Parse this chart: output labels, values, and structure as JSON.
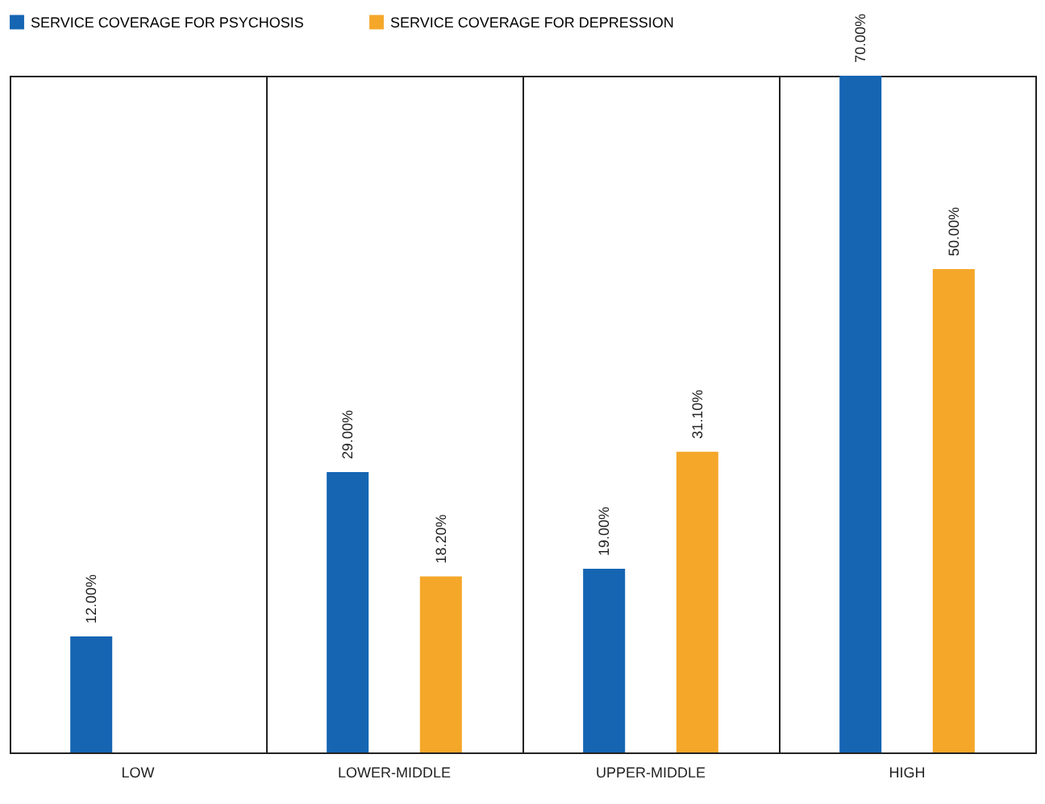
{
  "chart_data": {
    "type": "bar",
    "categories": [
      "LOW",
      "LOWER-MIDDLE",
      "UPPER-MIDDLE",
      "HIGH"
    ],
    "series": [
      {
        "name": "SERVICE COVERAGE FOR PSYCHOSIS",
        "color": "#1565b3",
        "values": [
          12,
          29,
          19,
          70
        ],
        "value_labels": [
          "12.00%",
          "29.00%",
          "19.00%",
          "70.00%"
        ]
      },
      {
        "name": "SERVICE COVERAGE FOR DEPRESSION",
        "color": "#f5a72a",
        "values": [
          null,
          18.2,
          31.1,
          50
        ],
        "value_labels": [
          null,
          "18.20%",
          "31.10%",
          "50.00%"
        ]
      }
    ],
    "legend": "top",
    "grid": "x",
    "tick_labels": "x"
  }
}
